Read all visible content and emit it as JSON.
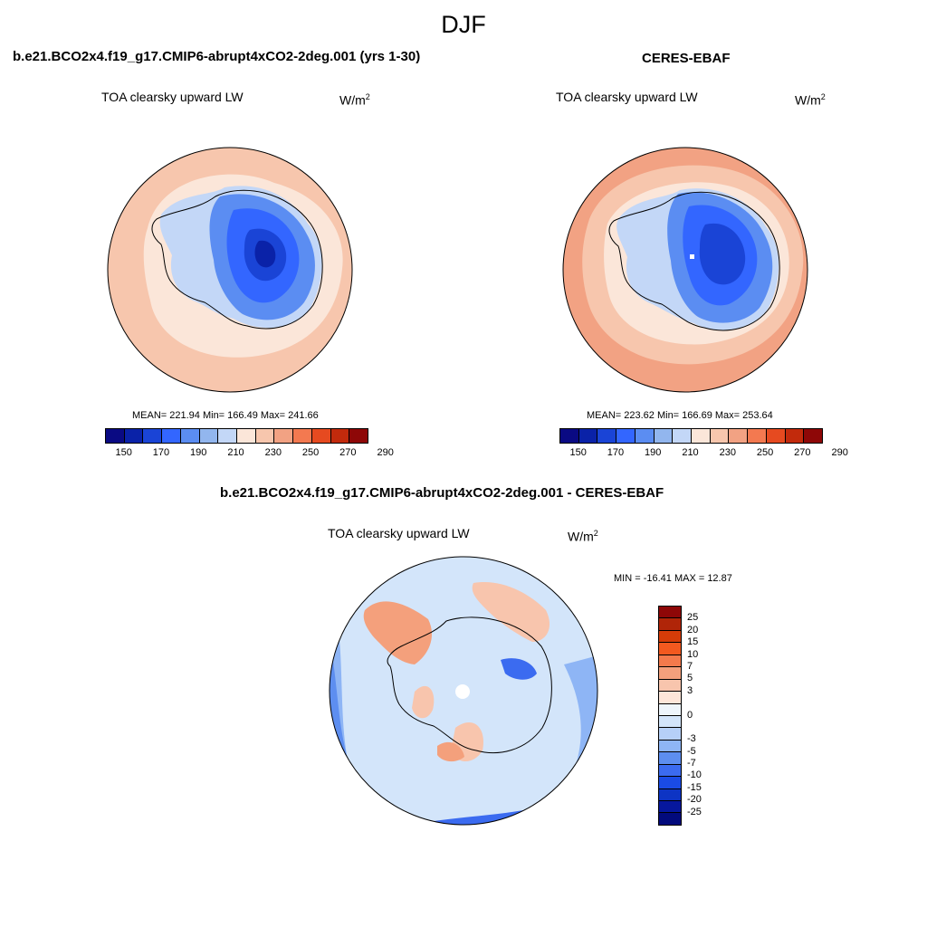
{
  "figure": {
    "season": "DJF",
    "units_main": "W/m",
    "units_sup": "2",
    "variable": "TOA clearsky upward LW"
  },
  "panels": [
    {
      "title": "b.e21.BCO2x4.f19_g17.CMIP6-abrupt4xCO2-2deg.001 (yrs 1-30)",
      "stats": "MEAN= 221.94  Min= 166.49  Max= 241.66"
    },
    {
      "title": "CERES-EBAF",
      "stats": "MEAN= 223.62  Min= 166.69  Max= 253.64"
    }
  ],
  "diff_panel": {
    "title": "b.e21.BCO2x4.f19_g17.CMIP6-abrupt4xCO2-2deg.001 - CERES-EBAF",
    "stats": "MIN = -16.41 MAX =  12.87"
  },
  "colorbar_main": {
    "colors": [
      "#0a0a83",
      "#0a22a8",
      "#1a44d6",
      "#3366ff",
      "#5b8df2",
      "#92b6ee",
      "#c3d7f7",
      "#fbe6d9",
      "#f7c6ad",
      "#f2a283",
      "#f37950",
      "#e64a20",
      "#c22a0c",
      "#8e0707"
    ],
    "labels": [
      "150",
      "170",
      "190",
      "210",
      "230",
      "250",
      "270",
      "290"
    ]
  },
  "colorbar_diff": {
    "colors": [
      "#8e0707",
      "#b02508",
      "#d63c08",
      "#f3591f",
      "#f47a4c",
      "#f4a07c",
      "#f8c5ad",
      "#fde6d9",
      "#eef5fb",
      "#d3e5fa",
      "#b6d0f7",
      "#8eb5f5",
      "#5d8ef0",
      "#3b6bf0",
      "#1a4be5",
      "#0d34c4",
      "#06179d",
      "#020a7c"
    ],
    "labels": [
      "25",
      "20",
      "15",
      "10",
      "7",
      "5",
      "3",
      "0",
      "-3",
      "-5",
      "-7",
      "-10",
      "-15",
      "-20",
      "-25"
    ]
  },
  "chart_data": [
    {
      "type": "heatmap",
      "projection": "south polar stereographic",
      "title": "b.e21.BCO2x4.f19_g17.CMIP6-abrupt4xCO2-2deg.001 (yrs 1-30)",
      "variable": "TOA clearsky upward LW",
      "units": "W/m2",
      "mean": 221.94,
      "min": 166.49,
      "max": 241.66,
      "contour_levels": [
        150,
        160,
        170,
        180,
        190,
        200,
        210,
        220,
        230,
        240,
        250,
        260,
        270,
        280,
        290
      ]
    },
    {
      "type": "heatmap",
      "projection": "south polar stereographic",
      "title": "CERES-EBAF",
      "variable": "TOA clearsky upward LW",
      "units": "W/m2",
      "mean": 223.62,
      "min": 166.69,
      "max": 253.64,
      "contour_levels": [
        150,
        160,
        170,
        180,
        190,
        200,
        210,
        220,
        230,
        240,
        250,
        260,
        270,
        280,
        290
      ]
    },
    {
      "type": "heatmap",
      "projection": "south polar stereographic",
      "title": "b.e21.BCO2x4.f19_g17.CMIP6-abrupt4xCO2-2deg.001 - CERES-EBAF",
      "variable": "TOA clearsky upward LW",
      "units": "W/m2",
      "min": -16.41,
      "max": 12.87,
      "contour_levels": [
        -25,
        -20,
        -15,
        -10,
        -7,
        -5,
        -3,
        0,
        3,
        5,
        7,
        10,
        15,
        20,
        25
      ]
    }
  ]
}
